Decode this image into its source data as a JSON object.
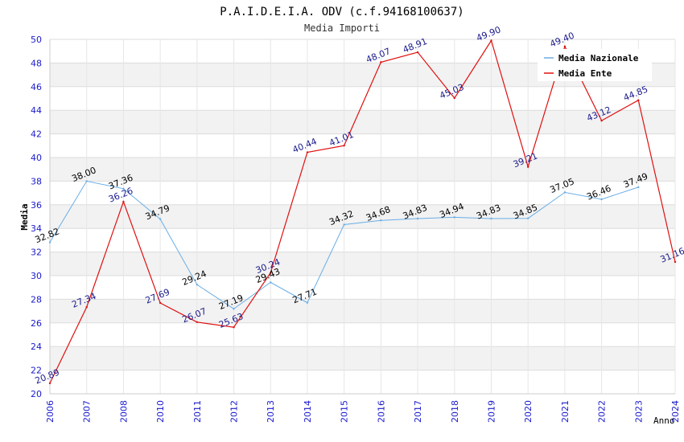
{
  "chart_data": {
    "type": "line",
    "title": "P.A.I.D.E.I.A. ODV (c.f.94168100637)",
    "subtitle": "Media Importi",
    "xlabel": "Anno",
    "ylabel": "Media",
    "ylim": [
      20,
      50
    ],
    "ytick_step": 2,
    "grid": true,
    "legend_position": "top-right",
    "categories": [
      "2006",
      "2007",
      "2008",
      "2010",
      "2011",
      "2012",
      "2013",
      "2014",
      "2015",
      "2016",
      "2017",
      "2018",
      "2019",
      "2020",
      "2021",
      "2022",
      "2023",
      "2024"
    ],
    "series": [
      {
        "name": "Media Nazionale",
        "color": "#6aaee6",
        "label_color": "#000000",
        "values": [
          32.82,
          38.0,
          37.36,
          34.79,
          29.24,
          27.19,
          29.43,
          27.71,
          34.32,
          34.68,
          34.83,
          34.94,
          34.83,
          34.85,
          37.05,
          36.46,
          37.49,
          null
        ],
        "labels": [
          "32.82",
          "38.00",
          "37.36",
          "34.79",
          "29.24",
          "27.19",
          "29.43",
          "27.71",
          "34.32",
          "34.68",
          "34.83",
          "34.94",
          "34.83",
          "34.85",
          "37.05",
          "36.46",
          "37.49",
          null
        ]
      },
      {
        "name": "Media Ente",
        "color": "#e01010",
        "label_color": "#1a1a8c",
        "values": [
          20.89,
          27.34,
          36.26,
          27.69,
          26.07,
          25.63,
          30.24,
          40.44,
          41.01,
          48.07,
          48.91,
          45.03,
          49.9,
          39.21,
          49.4,
          43.12,
          44.85,
          31.16
        ],
        "labels": [
          "20.89",
          "27.34",
          "36.26",
          "27.69",
          "26.07",
          "25.63",
          "30.24",
          "40.44",
          "41.01",
          "48.07",
          "48.91",
          "45.03",
          "49.90",
          "39.21",
          "49.40",
          "43.12",
          "44.85",
          "31.16"
        ]
      }
    ]
  }
}
